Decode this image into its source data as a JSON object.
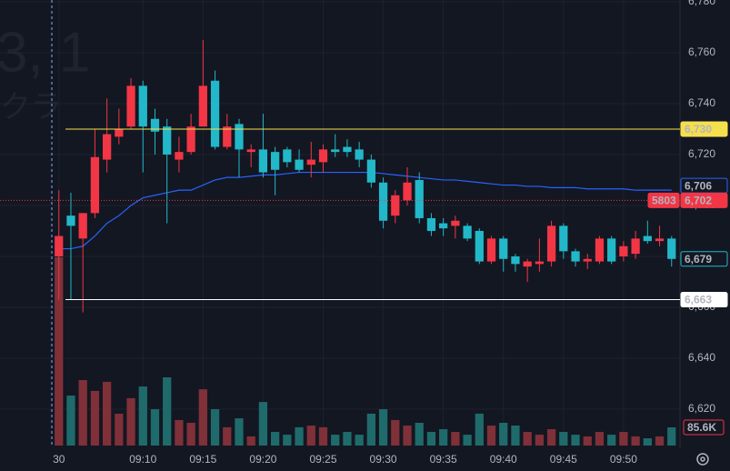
{
  "chart_data": {
    "type": "candlestick",
    "watermark": "3, 1",
    "watermark_sub": "クラ",
    "up_color": "#f23645",
    "down_color": "#22b8c9",
    "volume_up_color": "#803038",
    "volume_down_color": "#1f6b6b",
    "open": [
      6680,
      6696,
      6687,
      6697,
      6718,
      6727,
      6731,
      6747,
      6734,
      6731,
      6718,
      6721,
      6731,
      6749,
      6723,
      6732,
      6721,
      6722,
      6721,
      6722,
      6718,
      6716,
      6717,
      6722,
      6723,
      6722,
      6718,
      6709,
      6696,
      6702,
      6710,
      6695,
      6693,
      6692,
      6692,
      6690,
      6678,
      6687,
      6680,
      6676,
      6677,
      6678,
      6692,
      6682,
      6678,
      6678,
      6687,
      6680,
      6681,
      6688,
      6686,
      6687
    ],
    "high": [
      6706,
      6705,
      6697,
      6730,
      6742,
      6738,
      6750,
      6749,
      6738,
      6734,
      6727,
      6736,
      6765,
      6753,
      6736,
      6734,
      6724,
      6736,
      6723,
      6723,
      6722,
      6725,
      6724,
      6728,
      6726,
      6725,
      6720,
      6711,
      6706,
      6715,
      6713,
      6697,
      6695,
      6696,
      6693,
      6691,
      6688,
      6688,
      6681,
      6679,
      6687,
      6694,
      6693,
      6683,
      6681,
      6688,
      6688,
      6686,
      6690,
      6694,
      6692,
      6688
    ],
    "low": [
      6663,
      6663,
      6658,
      6695,
      6713,
      6724,
      6730,
      6713,
      6720,
      6693,
      6713,
      6720,
      6731,
      6722,
      6722,
      6711,
      6715,
      6711,
      6704,
      6715,
      6713,
      6711,
      6713,
      6719,
      6719,
      6715,
      6707,
      6691,
      6693,
      6700,
      6693,
      6688,
      6688,
      6687,
      6686,
      6677,
      6677,
      6674,
      6674,
      6670,
      6674,
      6676,
      6679,
      6676,
      6675,
      6677,
      6677,
      6678,
      6679,
      6685,
      6684,
      6676
    ],
    "close": [
      6688,
      6692,
      6697,
      6719,
      6728,
      6730,
      6747,
      6731,
      6729,
      6720,
      6721,
      6731,
      6747,
      6723,
      6731,
      6722,
      6722,
      6713,
      6714,
      6717,
      6714,
      6718,
      6722,
      6721,
      6721,
      6718,
      6709,
      6694,
      6704,
      6709,
      6695,
      6690,
      6691,
      6694,
      6687,
      6678,
      6687,
      6679,
      6677,
      6678,
      6678,
      6692,
      6682,
      6678,
      6679,
      6687,
      6678,
      6684,
      6687,
      6686,
      6687,
      6679
    ],
    "volume": {
      "values": [
        886,
        235,
        308,
        257,
        300,
        150,
        223,
        278,
        171,
        321,
        120,
        107,
        265,
        171,
        86,
        128,
        43,
        205,
        64,
        51,
        86,
        94,
        86,
        51,
        64,
        51,
        150,
        171,
        120,
        94,
        107,
        64,
        77,
        64,
        51,
        150,
        94,
        107,
        94,
        64,
        51,
        77,
        64,
        51,
        43,
        64,
        51,
        64,
        43,
        34,
        43,
        85.6
      ],
      "last_label": "85.6K"
    },
    "ma": {
      "color": "#2962ff",
      "values": [
        6683,
        6683,
        6684,
        6688,
        6693,
        6696,
        6700,
        6703,
        6704,
        6705,
        6706,
        6706,
        6708,
        6710,
        6711,
        6711,
        6711.5,
        6712,
        6712,
        6712.5,
        6713,
        6713,
        6713,
        6713,
        6713,
        6713,
        6713,
        6712.5,
        6712,
        6711.5,
        6711,
        6710.5,
        6710,
        6710,
        6709.5,
        6709,
        6708.5,
        6708,
        6708,
        6707.5,
        6707.5,
        6707,
        6707,
        6707,
        6706.5,
        6706.5,
        6706.5,
        6706.5,
        6706,
        6706,
        6706,
        6706
      ],
      "last": {
        "value": 6706,
        "label": "6,706"
      }
    },
    "levels": [
      {
        "value": 6730,
        "label": "6,730",
        "color": "#f5df4d"
      },
      {
        "value": 6663,
        "label": "6,663",
        "color": "#ffffff"
      }
    ],
    "current": {
      "value": 6702,
      "label": "6,702",
      "countdown": "5803",
      "color": "#f23645"
    },
    "close_tag": {
      "value": 6679,
      "label": "6,679"
    },
    "xlim": [
      -4.9,
      51.7
    ],
    "xticks": [
      {
        "value": 0,
        "label": "30"
      },
      {
        "value": 7,
        "label": "09:10"
      },
      {
        "value": 12,
        "label": "09:15"
      },
      {
        "value": 17,
        "label": "09:20"
      },
      {
        "value": 22,
        "label": "09:25"
      },
      {
        "value": 27,
        "label": "09:30"
      },
      {
        "value": 32,
        "label": "09:35"
      },
      {
        "value": 37,
        "label": "09:40"
      },
      {
        "value": 42,
        "label": "09:45"
      },
      {
        "value": 47,
        "label": "09:50"
      }
    ],
    "ylim": [
      6605.7,
      6780.7
    ],
    "volume_lim": [
      0,
      2097
    ],
    "yticks": [
      {
        "value": 6620,
        "label": "6,620"
      },
      {
        "value": 6640,
        "label": "6,640"
      },
      {
        "value": 6660,
        "label": "6,660"
      },
      {
        "value": 6680,
        "label": "6,680"
      },
      {
        "value": 6700,
        "label": "6,700"
      },
      {
        "value": 6720,
        "label": "6,720"
      },
      {
        "value": 6740,
        "label": "6,740"
      },
      {
        "value": 6760,
        "label": "6,760"
      },
      {
        "value": 6780,
        "label": "6,780"
      }
    ],
    "grid": true
  }
}
